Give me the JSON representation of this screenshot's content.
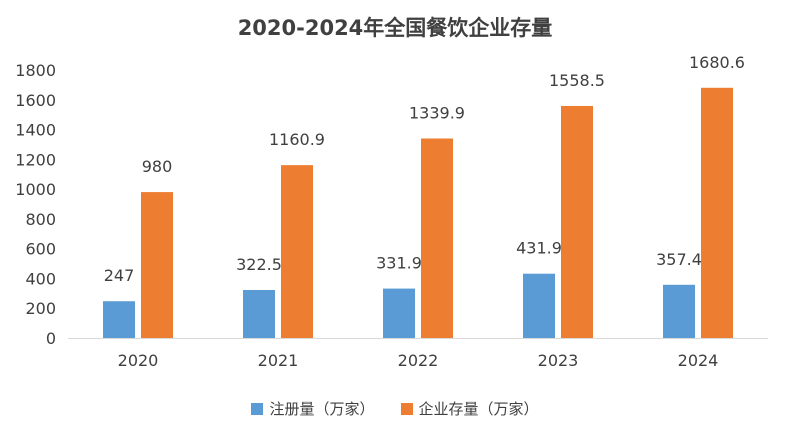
{
  "chart_data": {
    "type": "bar",
    "title": "2020-2024年全国餐饮企业存量",
    "categories": [
      "2020",
      "2021",
      "2022",
      "2023",
      "2024"
    ],
    "series": [
      {
        "name": "注册量（万家）",
        "color": "#5B9BD5",
        "values": [
          247,
          322.5,
          331.9,
          431.9,
          357.4
        ]
      },
      {
        "name": "企业存量（万家）",
        "color": "#ED7D31",
        "values": [
          980,
          1160.9,
          1339.9,
          1558.5,
          1680.6
        ]
      }
    ],
    "ylim": [
      0,
      1800
    ],
    "yticks": [
      0,
      200,
      400,
      600,
      800,
      1000,
      1200,
      1400,
      1600,
      1800
    ],
    "grid": false,
    "legend": "bottom"
  }
}
